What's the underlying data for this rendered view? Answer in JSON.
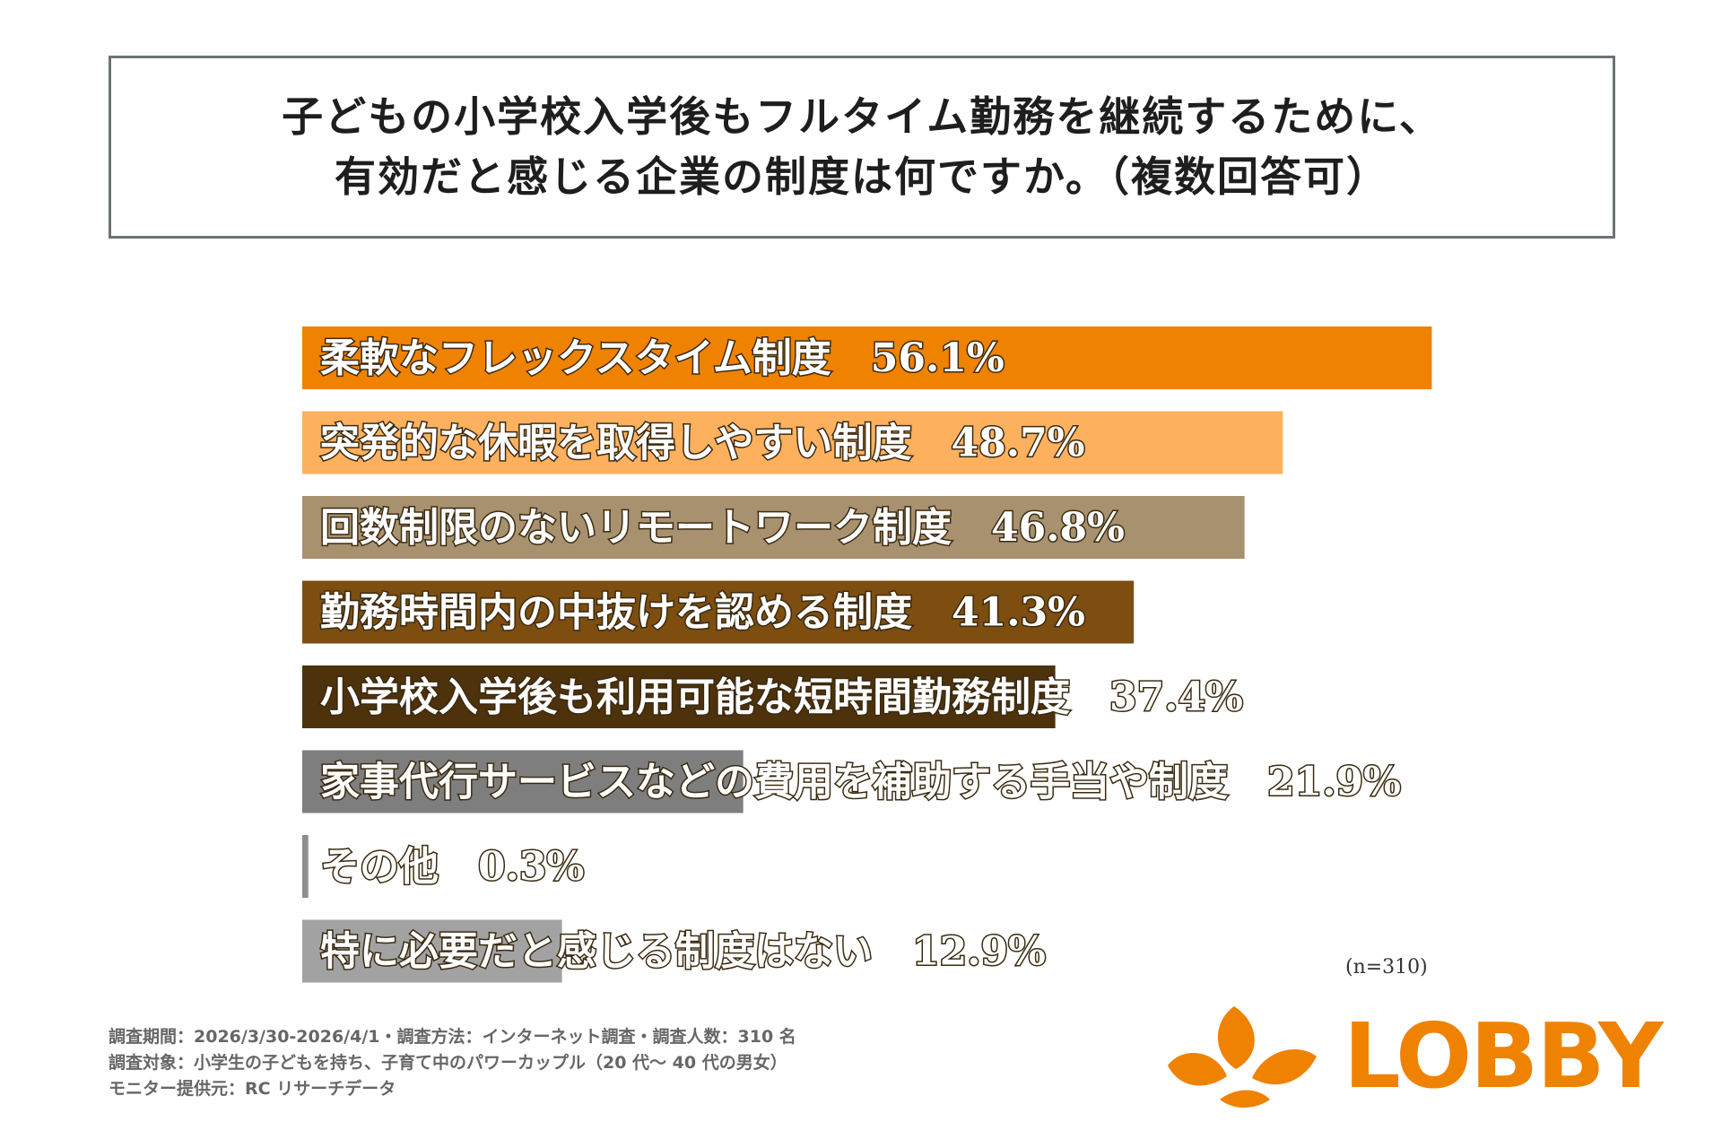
{
  "title": {
    "line1": "子どもの小学校入学後もフルタイム勤務を継続するために、",
    "line2": "有効だと感じる企業の制度は何ですか。（複数回答可）"
  },
  "chart_data": {
    "type": "bar",
    "orientation": "horizontal",
    "title": "子どもの小学校入学後もフルタイム勤務を継続するために、有効だと感じる企業の制度は何ですか。（複数回答可）",
    "unit": "%",
    "xlim": [
      0,
      60
    ],
    "categories": [
      "柔軟なフレックスタイム制度",
      "突発的な休暇を取得しやすい制度",
      "回数制限のないリモートワーク制度",
      "勤務時間内の中抜けを認める制度",
      "小学校入学後も利用可能な短時間勤務制度",
      "家事代行サービスなどの費用を補助する手当や制度",
      "その他",
      "特に必要だと感じる制度はない"
    ],
    "values": [
      56.1,
      48.7,
      46.8,
      41.3,
      37.4,
      21.9,
      0.3,
      12.9
    ],
    "value_labels": [
      "56.1%",
      "48.7%",
      "46.8%",
      "41.3%",
      "37.4%",
      "21.9%",
      "0.3%",
      "12.9%"
    ],
    "colors": [
      "#ef8200",
      "#fdb05e",
      "#a8916f",
      "#7d4e10",
      "#4e320b",
      "#7e7e7e",
      "#8e8e8e",
      "#a2a2a2"
    ]
  },
  "sample_size": "(n=310)",
  "footnote": {
    "line1": "調査期間：2026/3/30-2026/4/1・調査方法：インターネット調査・調査人数：310 名",
    "line2": "調査対象：小学生の子どもを持ち、子育て中のパワーカップル（20 代〜 40 代の男女）",
    "line3": "モニター提供元：RC リサーチデータ"
  },
  "logo": {
    "text": "LOBBY",
    "color": "#ef8200"
  }
}
